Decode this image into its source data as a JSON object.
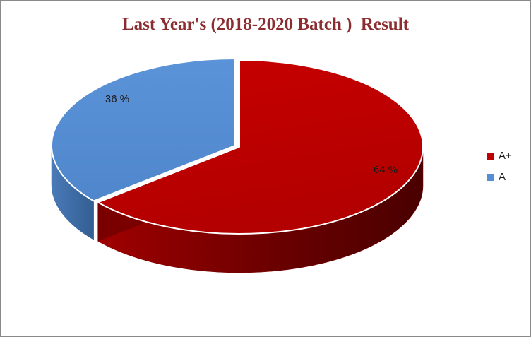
{
  "chart_data": {
    "type": "pie",
    "title": "Last Year's (2018-2020 Batch )  Result",
    "title_color": "#8b2d30",
    "categories": [
      "A+",
      "A"
    ],
    "values": [
      64,
      36
    ],
    "data_labels": [
      "64 %",
      "36 %"
    ],
    "colors": [
      "#c00000",
      "#558ed5"
    ],
    "side_colors": [
      "#7e0000",
      "#3f6fa8"
    ],
    "exploded_category": "A",
    "legend": "right"
  }
}
